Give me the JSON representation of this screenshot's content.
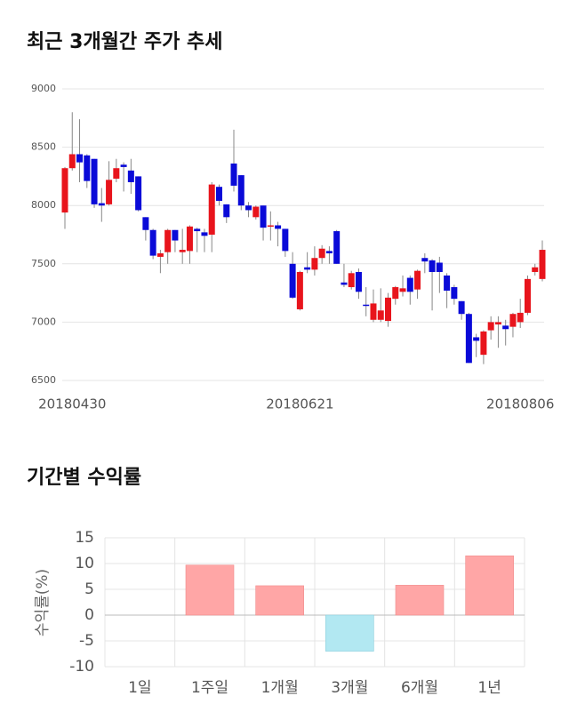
{
  "chart_data": [
    {
      "type": "candlestick",
      "title": "최근 3개월간 주가 추세",
      "categories": [
        null,
        "20180430",
        null,
        null,
        null,
        null,
        null,
        null,
        null,
        null,
        null,
        null,
        null,
        null,
        null,
        null,
        null,
        null,
        null,
        null,
        null,
        null,
        null,
        null,
        null,
        null,
        null,
        null,
        null,
        null,
        null,
        null,
        "20180621",
        null,
        null,
        null,
        null,
        null,
        null,
        null,
        null,
        null,
        null,
        null,
        null,
        null,
        null,
        null,
        null,
        null,
        null,
        null,
        null,
        null,
        null,
        null,
        null,
        null,
        null,
        null,
        null,
        null,
        "20180806",
        null,
        null,
        null
      ],
      "open": [
        7940,
        8320,
        8440,
        8430,
        8400,
        8020,
        8010,
        8230,
        8350,
        8300,
        8250,
        7900,
        7790,
        7560,
        7600,
        7790,
        7600,
        7610,
        7800,
        7770,
        7750,
        8160,
        8010,
        8360,
        8260,
        8000,
        7900,
        8000,
        7820,
        7830,
        7800,
        7500,
        7110,
        7470,
        7450,
        7550,
        7610,
        7780,
        7340,
        7300,
        7430,
        7150,
        7020,
        7020,
        7010,
        7200,
        7260,
        7380,
        7280,
        7550,
        7530,
        7510,
        7400,
        7300,
        7180,
        7070,
        6870,
        6720,
        6930,
        6980,
        6970,
        6960,
        7000,
        7080,
        7430,
        7370
      ],
      "high": [
        8330,
        8800,
        8740,
        8440,
        8400,
        8150,
        8380,
        8400,
        8370,
        8400,
        8250,
        7900,
        7800,
        7620,
        7800,
        7790,
        7800,
        7830,
        7810,
        7800,
        8200,
        8180,
        8010,
        8650,
        8260,
        8030,
        8000,
        8000,
        7950,
        7860,
        7800,
        7600,
        7440,
        7600,
        7650,
        7660,
        7650,
        7790,
        7500,
        7440,
        7460,
        7300,
        7280,
        7290,
        7250,
        7310,
        7400,
        7400,
        7450,
        7590,
        7540,
        7560,
        7420,
        7320,
        7180,
        7080,
        6900,
        6930,
        7050,
        7050,
        7020,
        7080,
        7200,
        7400,
        7500,
        7700
      ],
      "low": [
        7800,
        8300,
        8200,
        8150,
        7980,
        7860,
        8000,
        8200,
        8120,
        8100,
        7950,
        7700,
        7540,
        7420,
        7500,
        7600,
        7500,
        7500,
        7600,
        7600,
        7600,
        8000,
        7850,
        8120,
        7960,
        7900,
        7880,
        7700,
        7700,
        7650,
        7560,
        7200,
        7100,
        7420,
        7400,
        7500,
        7500,
        7500,
        7300,
        7280,
        7200,
        7050,
        7000,
        7000,
        6960,
        7150,
        7220,
        7150,
        7200,
        7420,
        7100,
        7250,
        7120,
        7150,
        7020,
        6650,
        6700,
        6640,
        6850,
        6780,
        6800,
        6870,
        6950,
        7060,
        7400,
        7350
      ],
      "close": [
        8320,
        8440,
        8370,
        8210,
        8010,
        8000,
        8220,
        8320,
        8330,
        8200,
        7960,
        7790,
        7570,
        7590,
        7790,
        7700,
        7620,
        7820,
        7780,
        7740,
        8180,
        8040,
        7900,
        8170,
        8000,
        7960,
        7990,
        7810,
        7830,
        7800,
        7610,
        7210,
        7430,
        7450,
        7550,
        7630,
        7590,
        7500,
        7320,
        7420,
        7260,
        7140,
        7160,
        7100,
        7210,
        7300,
        7290,
        7260,
        7440,
        7520,
        7430,
        7430,
        7270,
        7200,
        7070,
        6650,
        6840,
        6920,
        7000,
        7000,
        6940,
        7070,
        7080,
        7370,
        7470,
        7620
      ],
      "up_color": "#e8141c",
      "down_color": "#0a0ad8",
      "ylim": [
        6500,
        9000
      ],
      "yticks": [
        6500,
        7000,
        7500,
        8000,
        8500,
        9000
      ],
      "grid": true
    },
    {
      "type": "bar",
      "title": "기간별 수익률",
      "ylabel": "수익률(%)",
      "categories": [
        "1일",
        "1주일",
        "1개월",
        "3개월",
        "6개월",
        "1년"
      ],
      "values": [
        0,
        9.7,
        5.7,
        -7,
        5.8,
        11.5
      ],
      "positive_color": "#ffa6a6",
      "negative_color": "#b2e8f2",
      "ylim": [
        -10,
        15
      ],
      "yticks": [
        -10,
        -5,
        0,
        5,
        10,
        15
      ],
      "grid": true
    }
  ]
}
